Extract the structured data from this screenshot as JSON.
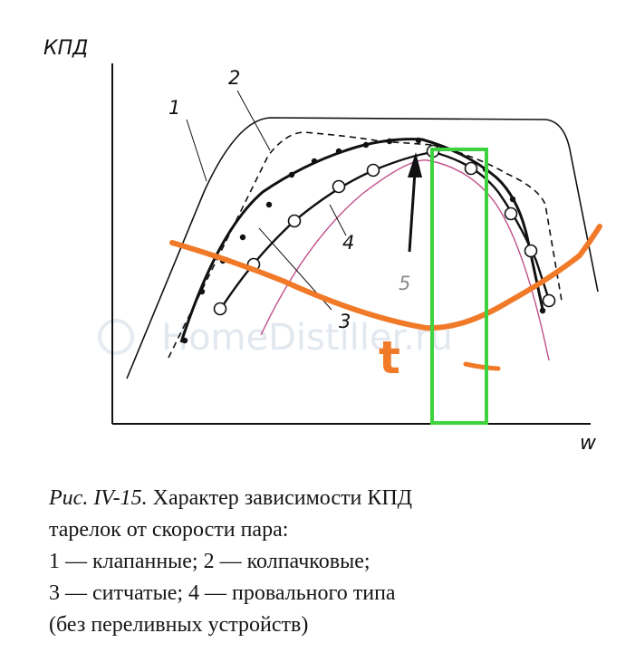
{
  "axes": {
    "y_label": "КПД",
    "x_label": "w"
  },
  "curve_labels": {
    "c1": "1",
    "c2": "2",
    "c3": "3",
    "c4": "4",
    "c5": "5"
  },
  "annotation": {
    "t_label": "t"
  },
  "watermark": "HomeDistiller.ru",
  "colors": {
    "orange": "#f07a28",
    "green": "#3ed23e",
    "magenta": "#c0508a",
    "ink": "#111111"
  },
  "caption": {
    "lead": "Рис. IV-15.",
    "line1": " Характер зависимости КПД",
    "line2": "тарелок от скорости пара:",
    "line3": "1 — клапанные; 2 — колпачковые;",
    "line4": "3 — ситчатые; 4 — провального типа",
    "line5": "(без переливных устройств)"
  }
}
